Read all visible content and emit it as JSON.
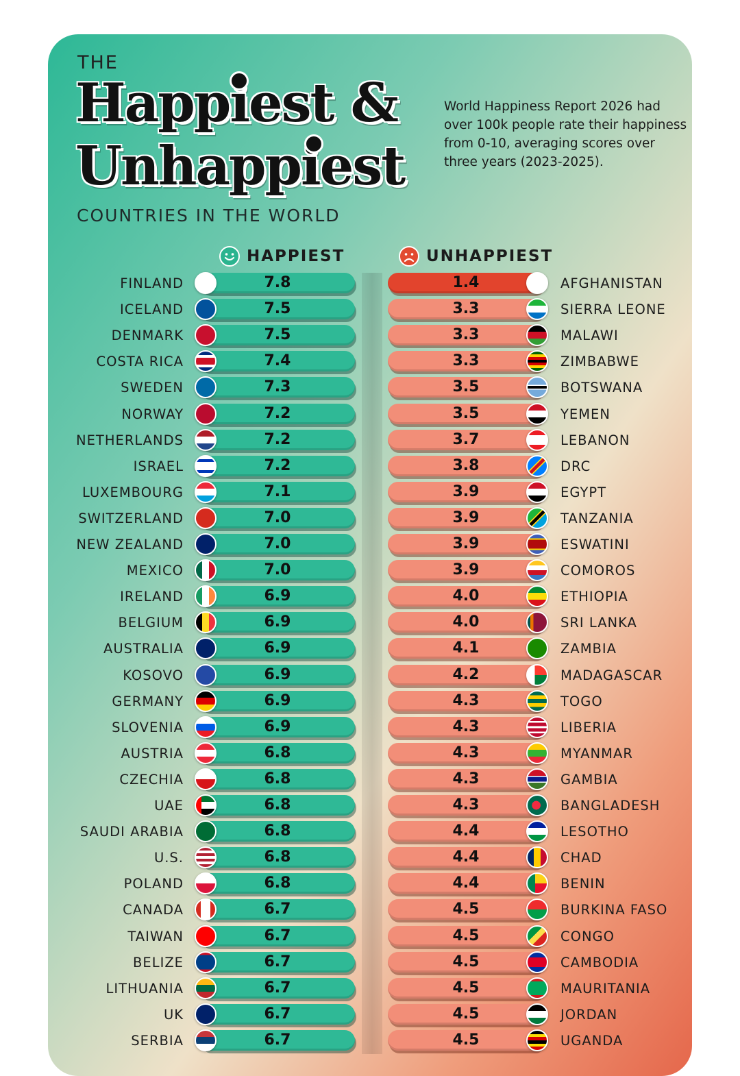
{
  "header": {
    "pre_title": "THE",
    "title_line1": "Happiest &",
    "title_line2": "Unhappiest",
    "subtitle": "COUNTRIES IN THE WORLD",
    "description": "World Happiness Report 2026 had over 100k people rate their happiness from 0-10, averaging scores over three years (2023-2025)."
  },
  "columns": {
    "happiest_label": "HAPPIEST",
    "unhappiest_label": "UNHAPPIEST"
  },
  "colors": {
    "happy_bar": "#2fb996",
    "unhappy_bar": "#f28e78",
    "worst_bar": "#e2442d",
    "happy_icon": "#2bb48f",
    "unhappy_icon": "#e24a30"
  },
  "chart_data": {
    "type": "table",
    "title": "The Happiest & Unhappiest Countries in the World",
    "value_label": "Average happiness score (0-10), 2023-2025",
    "series": [
      {
        "name": "HAPPIEST",
        "rows": [
          {
            "country": "FINLAND",
            "score": "7.8",
            "flag": "finland-flag"
          },
          {
            "country": "ICELAND",
            "score": "7.5",
            "flag": "iceland-flag"
          },
          {
            "country": "DENMARK",
            "score": "7.5",
            "flag": "denmark-flag"
          },
          {
            "country": "COSTA RICA",
            "score": "7.4",
            "flag": "costa-rica-flag"
          },
          {
            "country": "SWEDEN",
            "score": "7.3",
            "flag": "sweden-flag"
          },
          {
            "country": "NORWAY",
            "score": "7.2",
            "flag": "norway-flag"
          },
          {
            "country": "NETHERLANDS",
            "score": "7.2",
            "flag": "netherlands-flag"
          },
          {
            "country": "ISRAEL",
            "score": "7.2",
            "flag": "israel-flag"
          },
          {
            "country": "LUXEMBOURG",
            "score": "7.1",
            "flag": "luxembourg-flag"
          },
          {
            "country": "SWITZERLAND",
            "score": "7.0",
            "flag": "switzerland-flag"
          },
          {
            "country": "NEW ZEALAND",
            "score": "7.0",
            "flag": "new-zealand-flag"
          },
          {
            "country": "MEXICO",
            "score": "7.0",
            "flag": "mexico-flag"
          },
          {
            "country": "IRELAND",
            "score": "6.9",
            "flag": "ireland-flag"
          },
          {
            "country": "BELGIUM",
            "score": "6.9",
            "flag": "belgium-flag"
          },
          {
            "country": "AUSTRALIA",
            "score": "6.9",
            "flag": "australia-flag"
          },
          {
            "country": "KOSOVO",
            "score": "6.9",
            "flag": "kosovo-flag"
          },
          {
            "country": "GERMANY",
            "score": "6.9",
            "flag": "germany-flag"
          },
          {
            "country": "SLOVENIA",
            "score": "6.9",
            "flag": "slovenia-flag"
          },
          {
            "country": "AUSTRIA",
            "score": "6.8",
            "flag": "austria-flag"
          },
          {
            "country": "CZECHIA",
            "score": "6.8",
            "flag": "czechia-flag"
          },
          {
            "country": "UAE",
            "score": "6.8",
            "flag": "uae-flag"
          },
          {
            "country": "SAUDI ARABIA",
            "score": "6.8",
            "flag": "saudi-arabia-flag"
          },
          {
            "country": "U.S.",
            "score": "6.8",
            "flag": "us-flag"
          },
          {
            "country": "POLAND",
            "score": "6.8",
            "flag": "poland-flag"
          },
          {
            "country": "CANADA",
            "score": "6.7",
            "flag": "canada-flag"
          },
          {
            "country": "TAIWAN",
            "score": "6.7",
            "flag": "taiwan-flag"
          },
          {
            "country": "BELIZE",
            "score": "6.7",
            "flag": "belize-flag"
          },
          {
            "country": "LITHUANIA",
            "score": "6.7",
            "flag": "lithuania-flag"
          },
          {
            "country": "UK",
            "score": "6.7",
            "flag": "uk-flag"
          },
          {
            "country": "SERBIA",
            "score": "6.7",
            "flag": "serbia-flag"
          }
        ]
      },
      {
        "name": "UNHAPPIEST",
        "rows": [
          {
            "country": "AFGHANISTAN",
            "score": "1.4",
            "flag": "afghanistan-flag"
          },
          {
            "country": "SIERRA LEONE",
            "score": "3.3",
            "flag": "sierra-leone-flag"
          },
          {
            "country": "MALAWI",
            "score": "3.3",
            "flag": "malawi-flag"
          },
          {
            "country": "ZIMBABWE",
            "score": "3.3",
            "flag": "zimbabwe-flag"
          },
          {
            "country": "BOTSWANA",
            "score": "3.5",
            "flag": "botswana-flag"
          },
          {
            "country": "YEMEN",
            "score": "3.5",
            "flag": "yemen-flag"
          },
          {
            "country": "LEBANON",
            "score": "3.7",
            "flag": "lebanon-flag"
          },
          {
            "country": "DRC",
            "score": "3.8",
            "flag": "drc-flag"
          },
          {
            "country": "EGYPT",
            "score": "3.9",
            "flag": "egypt-flag"
          },
          {
            "country": "TANZANIA",
            "score": "3.9",
            "flag": "tanzania-flag"
          },
          {
            "country": "ESWATINI",
            "score": "3.9",
            "flag": "eswatini-flag"
          },
          {
            "country": "COMOROS",
            "score": "3.9",
            "flag": "comoros-flag"
          },
          {
            "country": "ETHIOPIA",
            "score": "4.0",
            "flag": "ethiopia-flag"
          },
          {
            "country": "SRI LANKA",
            "score": "4.0",
            "flag": "sri-lanka-flag"
          },
          {
            "country": "ZAMBIA",
            "score": "4.1",
            "flag": "zambia-flag"
          },
          {
            "country": "MADAGASCAR",
            "score": "4.2",
            "flag": "madagascar-flag"
          },
          {
            "country": "TOGO",
            "score": "4.3",
            "flag": "togo-flag"
          },
          {
            "country": "LIBERIA",
            "score": "4.3",
            "flag": "liberia-flag"
          },
          {
            "country": "MYANMAR",
            "score": "4.3",
            "flag": "myanmar-flag"
          },
          {
            "country": "GAMBIA",
            "score": "4.3",
            "flag": "gambia-flag"
          },
          {
            "country": "BANGLADESH",
            "score": "4.3",
            "flag": "bangladesh-flag"
          },
          {
            "country": "LESOTHO",
            "score": "4.4",
            "flag": "lesotho-flag"
          },
          {
            "country": "CHAD",
            "score": "4.4",
            "flag": "chad-flag"
          },
          {
            "country": "BENIN",
            "score": "4.4",
            "flag": "benin-flag"
          },
          {
            "country": "BURKINA FASO",
            "score": "4.5",
            "flag": "burkina-faso-flag"
          },
          {
            "country": "CONGO",
            "score": "4.5",
            "flag": "congo-flag"
          },
          {
            "country": "CAMBODIA",
            "score": "4.5",
            "flag": "cambodia-flag"
          },
          {
            "country": "MAURITANIA",
            "score": "4.5",
            "flag": "mauritania-flag"
          },
          {
            "country": "JORDAN",
            "score": "4.5",
            "flag": "jordan-flag"
          },
          {
            "country": "UGANDA",
            "score": "4.5",
            "flag": "uganda-flag"
          }
        ]
      }
    ]
  }
}
